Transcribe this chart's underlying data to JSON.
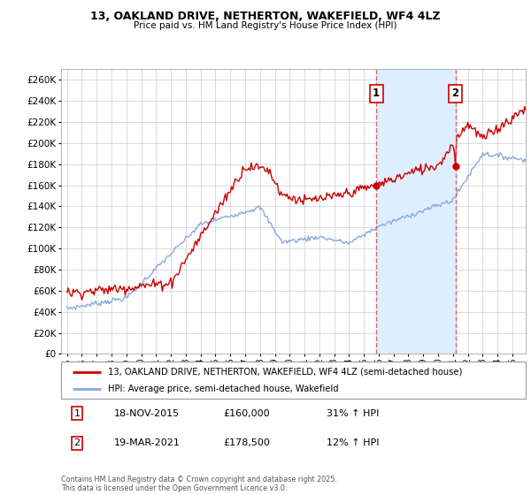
{
  "title": "13, OAKLAND DRIVE, NETHERTON, WAKEFIELD, WF4 4LZ",
  "subtitle": "Price paid vs. HM Land Registry's House Price Index (HPI)",
  "ylim": [
    0,
    270000
  ],
  "yticks": [
    0,
    20000,
    40000,
    60000,
    80000,
    100000,
    120000,
    140000,
    160000,
    180000,
    200000,
    220000,
    240000,
    260000
  ],
  "legend_line1": "13, OAKLAND DRIVE, NETHERTON, WAKEFIELD, WF4 4LZ (semi-detached house)",
  "legend_line2": "HPI: Average price, semi-detached house, Wakefield",
  "line1_color": "#cc0000",
  "line2_color": "#88aadd",
  "dot_color": "#cc0000",
  "marker1_date": "18-NOV-2015",
  "marker1_price": "£160,000",
  "marker1_hpi": "31% ↑ HPI",
  "marker2_date": "19-MAR-2021",
  "marker2_price": "£178,500",
  "marker2_hpi": "12% ↑ HPI",
  "footnote": "Contains HM Land Registry data © Crown copyright and database right 2025.\nThis data is licensed under the Open Government Licence v3.0.",
  "background_color": "#ffffff",
  "grid_color": "#cccccc",
  "vline_color": "#dd6666",
  "span_color": "#ddeeff"
}
